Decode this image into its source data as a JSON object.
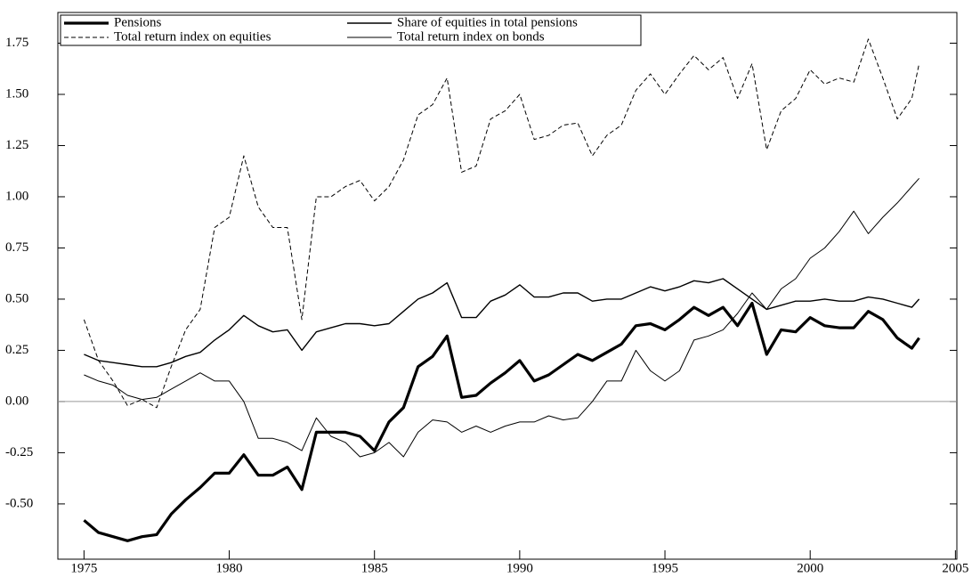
{
  "chart_data": {
    "type": "line",
    "x": [
      1975,
      1975.5,
      1976,
      1976.5,
      1977,
      1977.5,
      1978,
      1978.5,
      1979,
      1979.5,
      1980,
      1980.5,
      1981,
      1981.5,
      1982,
      1982.5,
      1983,
      1983.5,
      1984,
      1984.5,
      1985,
      1985.5,
      1986,
      1986.5,
      1987,
      1987.5,
      1988,
      1988.5,
      1989,
      1989.5,
      1990,
      1990.5,
      1991,
      1991.5,
      1992,
      1992.5,
      1993,
      1993.5,
      1994,
      1994.5,
      1995,
      1995.5,
      1996,
      1996.5,
      1997,
      1997.5,
      1998,
      1998.5,
      1999,
      1999.5,
      2000,
      2000.5,
      2001,
      2001.5,
      2002,
      2002.5,
      2003,
      2003.5,
      2003.75
    ],
    "series": [
      {
        "name": "Pensions",
        "color": "#000000",
        "width": 3.2,
        "dash": false,
        "values": [
          -0.58,
          -0.64,
          -0.66,
          -0.68,
          -0.66,
          -0.65,
          -0.55,
          -0.48,
          -0.42,
          -0.35,
          -0.35,
          -0.26,
          -0.36,
          -0.36,
          -0.32,
          -0.43,
          -0.15,
          -0.15,
          -0.15,
          -0.17,
          -0.24,
          -0.1,
          -0.03,
          0.17,
          0.22,
          0.32,
          0.02,
          0.03,
          0.09,
          0.14,
          0.2,
          0.1,
          0.13,
          0.18,
          0.23,
          0.2,
          0.24,
          0.28,
          0.37,
          0.38,
          0.35,
          0.4,
          0.46,
          0.42,
          0.46,
          0.37,
          0.48,
          0.23,
          0.35,
          0.34,
          0.41,
          0.37,
          0.36,
          0.36,
          0.44,
          0.4,
          0.31,
          0.26,
          0.31
        ]
      },
      {
        "name": "Share of equities in total pensions",
        "color": "#000000",
        "width": 1.4,
        "dash": false,
        "values": [
          0.23,
          0.2,
          0.19,
          0.18,
          0.17,
          0.17,
          0.19,
          0.22,
          0.24,
          0.3,
          0.35,
          0.42,
          0.37,
          0.34,
          0.35,
          0.25,
          0.34,
          0.36,
          0.38,
          0.38,
          0.37,
          0.38,
          0.44,
          0.5,
          0.53,
          0.58,
          0.41,
          0.41,
          0.49,
          0.52,
          0.57,
          0.51,
          0.51,
          0.53,
          0.53,
          0.49,
          0.5,
          0.5,
          0.53,
          0.56,
          0.54,
          0.56,
          0.59,
          0.58,
          0.6,
          0.55,
          0.5,
          0.45,
          0.47,
          0.49,
          0.49,
          0.5,
          0.49,
          0.49,
          0.51,
          0.5,
          0.48,
          0.46,
          0.5
        ]
      },
      {
        "name": "Total return index on equities",
        "color": "#000000",
        "width": 1,
        "dash": true,
        "values": [
          0.4,
          0.2,
          0.1,
          -0.02,
          0.01,
          -0.03,
          0.17,
          0.35,
          0.45,
          0.85,
          0.9,
          1.2,
          0.95,
          0.85,
          0.85,
          0.4,
          1.0,
          1.0,
          1.05,
          1.08,
          0.98,
          1.05,
          1.18,
          1.4,
          1.45,
          1.58,
          1.12,
          1.15,
          1.38,
          1.42,
          1.5,
          1.28,
          1.3,
          1.35,
          1.36,
          1.2,
          1.3,
          1.35,
          1.52,
          1.6,
          1.5,
          1.6,
          1.69,
          1.62,
          1.68,
          1.48,
          1.65,
          1.23,
          1.42,
          1.48,
          1.62,
          1.55,
          1.58,
          1.56,
          1.77,
          1.58,
          1.38,
          1.48,
          1.65
        ]
      },
      {
        "name": "Total return index on bonds",
        "color": "#000000",
        "width": 1,
        "dash": false,
        "values": [
          0.13,
          0.1,
          0.08,
          0.03,
          0.01,
          0.02,
          0.06,
          0.1,
          0.14,
          0.1,
          0.1,
          0.0,
          -0.18,
          -0.18,
          -0.2,
          -0.24,
          -0.08,
          -0.17,
          -0.2,
          -0.27,
          -0.25,
          -0.2,
          -0.27,
          -0.15,
          -0.09,
          -0.1,
          -0.15,
          -0.12,
          -0.15,
          -0.12,
          -0.1,
          -0.1,
          -0.07,
          -0.09,
          -0.08,
          0.0,
          0.1,
          0.1,
          0.25,
          0.15,
          0.1,
          0.15,
          0.3,
          0.32,
          0.35,
          0.43,
          0.53,
          0.45,
          0.55,
          0.6,
          0.7,
          0.75,
          0.83,
          0.93,
          0.82,
          0.9,
          0.97,
          1.05,
          1.09
        ]
      }
    ],
    "xlim": [
      1974.1,
      2005.05
    ],
    "ylim": [
      -0.77,
      1.9
    ],
    "xticks": [
      1975,
      1980,
      1985,
      1990,
      1995,
      2000,
      2005
    ],
    "yticks": [
      {
        "value": -0.5,
        "label": "-0.50"
      },
      -0.25,
      {
        "value": 0,
        "label": "0.00"
      },
      0.25,
      {
        "value": 0.5,
        "label": "0.50"
      },
      0.75,
      {
        "value": 1,
        "label": "1.00"
      },
      1.25,
      {
        "value": 1.5,
        "label": "1.50"
      },
      1.75
    ],
    "zero_line": true,
    "legend": "upper left"
  }
}
